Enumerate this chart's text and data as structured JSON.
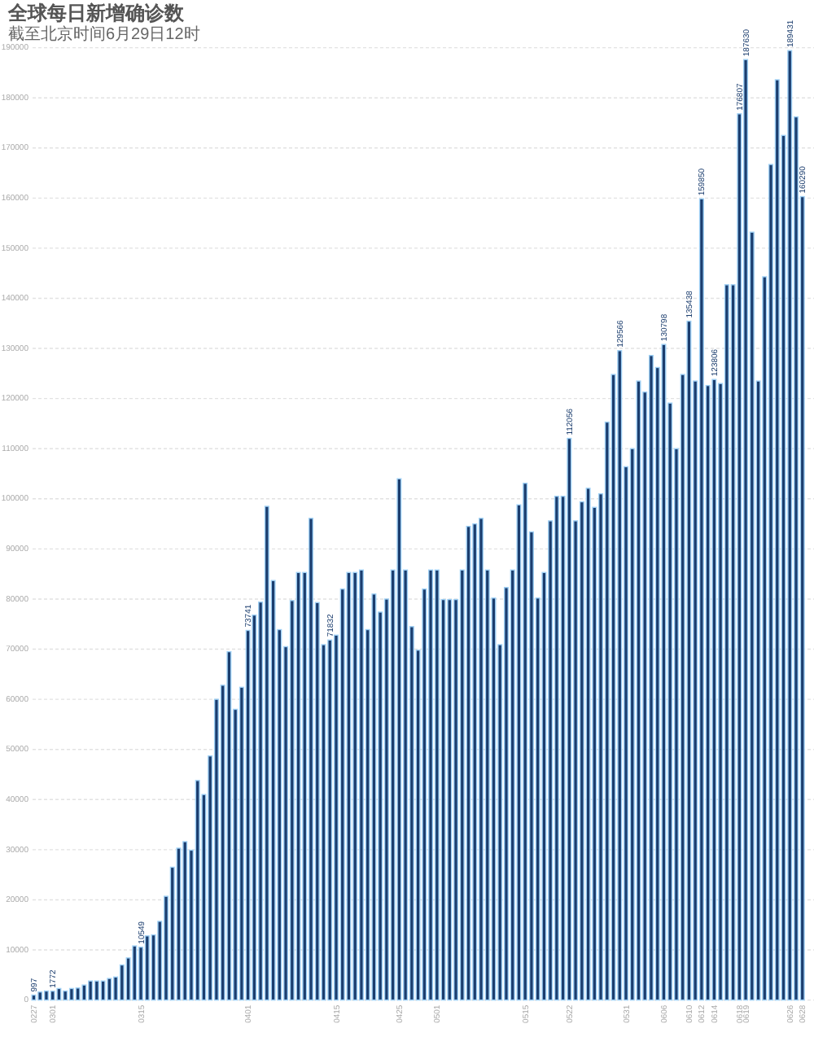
{
  "chart_data": {
    "type": "bar",
    "title": "全球每日新增确诊数",
    "subtitle": "截至北京时间6月29日12时",
    "categories": [
      "0227",
      null,
      null,
      "0301",
      null,
      null,
      null,
      null,
      null,
      null,
      null,
      null,
      null,
      null,
      null,
      null,
      null,
      "0315",
      null,
      null,
      null,
      null,
      null,
      null,
      null,
      null,
      null,
      null,
      null,
      null,
      null,
      null,
      null,
      null,
      "0401",
      null,
      null,
      null,
      null,
      null,
      null,
      null,
      null,
      null,
      null,
      null,
      null,
      null,
      "0415",
      null,
      null,
      null,
      null,
      null,
      null,
      null,
      null,
      null,
      "0425",
      null,
      null,
      null,
      null,
      null,
      "0501",
      null,
      null,
      null,
      null,
      null,
      null,
      null,
      null,
      null,
      null,
      null,
      null,
      null,
      "0515",
      null,
      null,
      null,
      null,
      null,
      null,
      "0522",
      null,
      null,
      null,
      null,
      null,
      null,
      null,
      null,
      "0531",
      null,
      null,
      null,
      null,
      null,
      "0606",
      null,
      null,
      null,
      "0610",
      null,
      "0612",
      null,
      "0614",
      null,
      null,
      null,
      "0618",
      "0619",
      null,
      null,
      null,
      null,
      null,
      null,
      "0626",
      null,
      "0628"
    ],
    "values": [
      997,
      1600,
      1800,
      1772,
      2300,
      1800,
      2300,
      2400,
      3000,
      3800,
      3800,
      3800,
      4300,
      4600,
      7000,
      8400,
      10800,
      10549,
      12800,
      13000,
      15700,
      20700,
      26500,
      30300,
      31600,
      29900,
      43800,
      41000,
      48700,
      60000,
      62800,
      69500,
      58000,
      62400,
      73741,
      76800,
      79400,
      98500,
      83700,
      73900,
      70500,
      79700,
      85300,
      85300,
      96100,
      79300,
      70900,
      71832,
      72800,
      82000,
      85300,
      85300,
      85800,
      73900,
      81000,
      77400,
      80000,
      85800,
      104000,
      85800,
      74500,
      69800,
      82000,
      85800,
      85800,
      79900,
      79900,
      79900,
      85800,
      94500,
      95000,
      96100,
      85800,
      80200,
      70900,
      82300,
      85800,
      98800,
      103100,
      93400,
      80200,
      85300,
      95600,
      100500,
      100500,
      112056,
      95600,
      99400,
      102100,
      98300,
      101000,
      115300,
      124800,
      129566,
      106400,
      110000,
      123500,
      121300,
      128600,
      126200,
      130798,
      119100,
      110000,
      124800,
      135438,
      123500,
      159850,
      122600,
      123806,
      123000,
      142700,
      142700,
      176807,
      187630,
      153200,
      123500,
      144300,
      166700,
      183600,
      172500,
      189431,
      176200,
      160290
    ],
    "value_labels": [
      "997",
      null,
      null,
      "1772",
      null,
      null,
      null,
      null,
      null,
      null,
      null,
      null,
      null,
      null,
      null,
      null,
      null,
      "10549",
      null,
      null,
      null,
      null,
      null,
      null,
      null,
      null,
      null,
      null,
      null,
      null,
      null,
      null,
      null,
      null,
      "73741",
      null,
      null,
      null,
      null,
      null,
      null,
      null,
      null,
      null,
      null,
      null,
      null,
      "71832",
      null,
      null,
      null,
      null,
      null,
      null,
      null,
      null,
      null,
      null,
      null,
      null,
      null,
      null,
      null,
      null,
      null,
      null,
      null,
      null,
      null,
      null,
      null,
      null,
      null,
      null,
      null,
      null,
      null,
      null,
      null,
      null,
      null,
      null,
      null,
      null,
      null,
      "112056",
      null,
      null,
      null,
      null,
      null,
      null,
      null,
      "129566",
      null,
      null,
      null,
      null,
      null,
      null,
      "130798",
      null,
      null,
      null,
      "135438",
      null,
      "159850",
      null,
      "123806",
      null,
      null,
      null,
      "176807",
      "187630",
      null,
      null,
      null,
      null,
      null,
      null,
      "189431",
      null,
      "160290"
    ],
    "color": "#1b3d6e",
    "ylim": [
      0,
      190000
    ],
    "yticks": [
      0,
      10000,
      20000,
      30000,
      40000,
      50000,
      60000,
      70000,
      80000,
      90000,
      100000,
      110000,
      120000,
      130000,
      140000,
      150000,
      160000,
      170000,
      180000,
      190000
    ],
    "grid": "y"
  }
}
